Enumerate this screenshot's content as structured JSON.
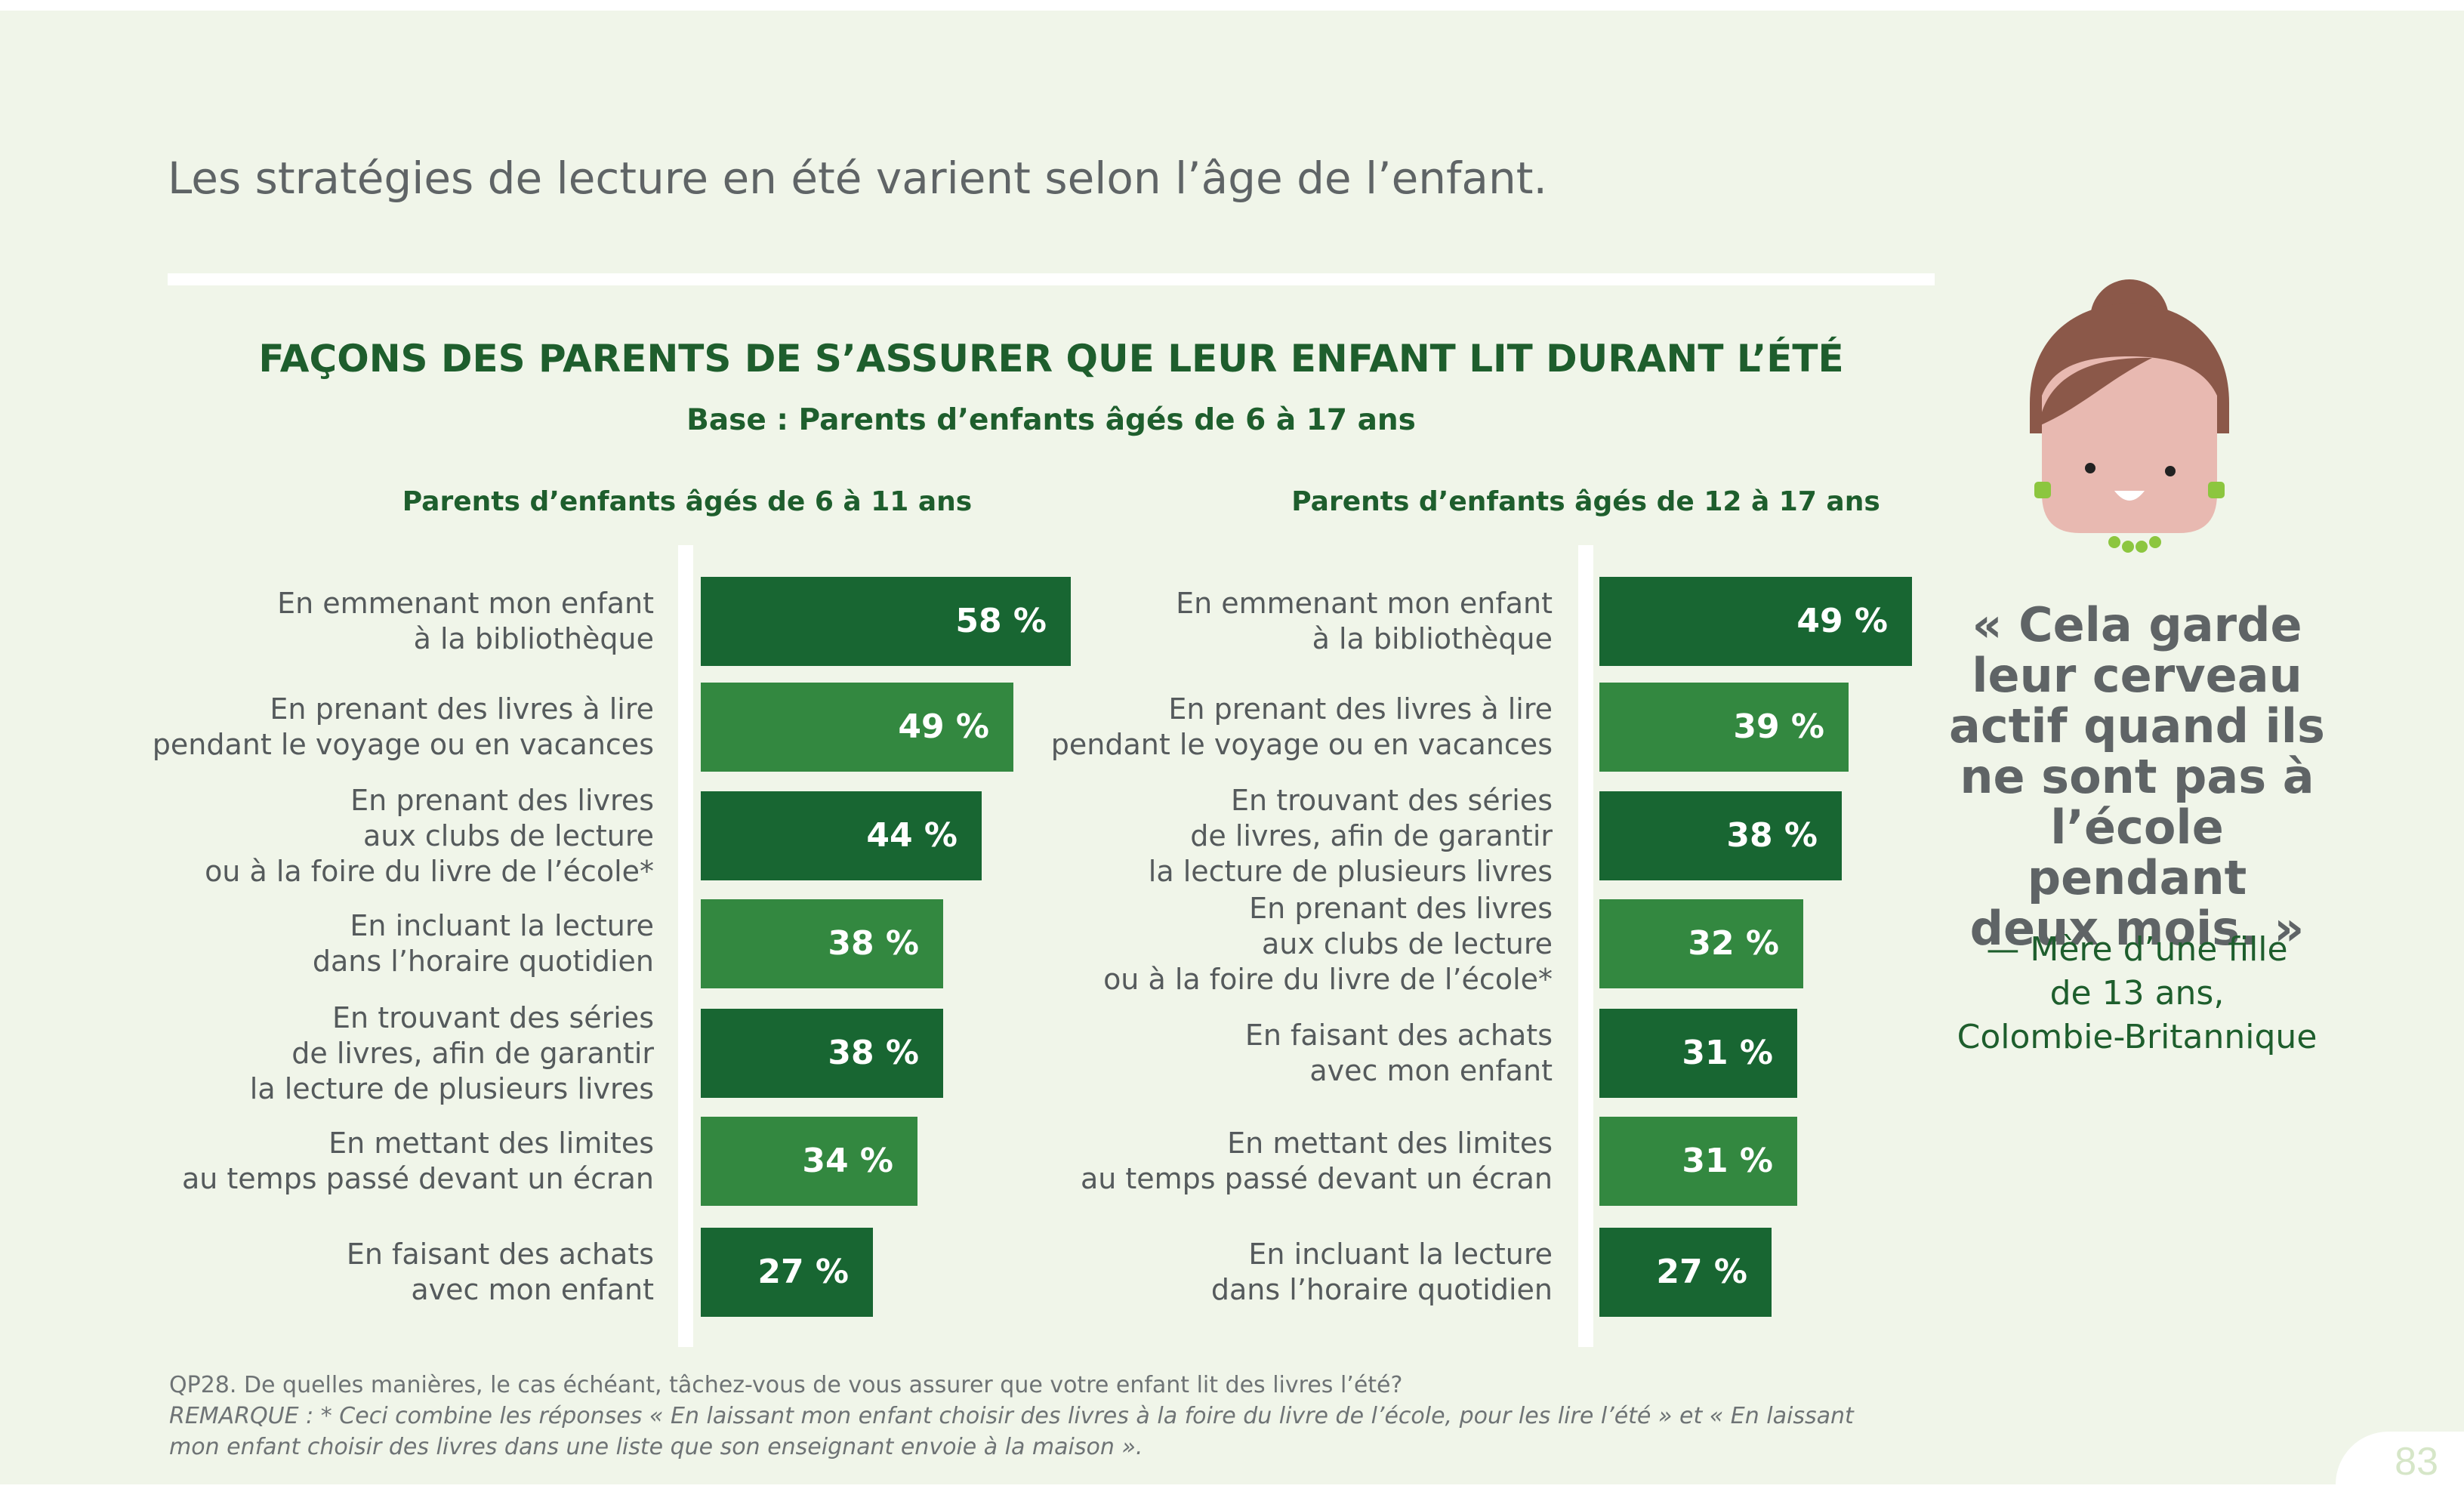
{
  "headline": "Les stratégies de lecture en été varient selon l’âge de l’enfant.",
  "chart_data": {
    "type": "bar",
    "orientation": "horizontal",
    "title": "FAÇONS DES PARENTS DE S’ASSURER QUE LEUR ENFANT LIT DURANT L’ÉTÉ",
    "subtitle": "Base : Parents d’enfants âgés de 6 à 17 ans",
    "value_suffix": " %",
    "xlim": [
      0,
      100
    ],
    "colors": {
      "dark": "#186632",
      "light": "#338840"
    },
    "panels": [
      {
        "title": "Parents d’enfants âgés de 6 à 11 ans",
        "categories": [
          "En emmenant mon enfant\nà la bibliothèque",
          "En prenant des livres à lire\npendant le voyage ou en vacances",
          "En prenant des livres\naux clubs de lecture\nou à la foire du livre de l’école*",
          "En incluant la lecture\ndans l’horaire quotidien",
          "En trouvant des séries\nde livres, afin de garantir\nla lecture de plusieurs livres",
          "En mettant des limites\nau temps passé devant un écran",
          "En faisant des achats\navec mon enfant"
        ],
        "values": [
          58,
          49,
          44,
          38,
          38,
          34,
          27
        ]
      },
      {
        "title": "Parents d’enfants âgés de 12 à 17 ans",
        "categories": [
          "En emmenant mon enfant\nà la bibliothèque",
          "En prenant des livres à lire\npendant le voyage ou en vacances",
          "En trouvant des séries\nde livres, afin de garantir\nla lecture de plusieurs livres",
          "En prenant des livres\naux clubs de lecture\nou à la foire du livre de l’école*",
          "En faisant des achats\navec mon enfant",
          "En mettant des limites\nau temps passé devant un écran",
          "En incluant la lecture\ndans l’horaire quotidien"
        ],
        "values": [
          49,
          39,
          38,
          32,
          31,
          31,
          27
        ]
      }
    ]
  },
  "quote": {
    "text": "« Cela garde\nleur cerveau\nactif quand ils\nne sont pas à\nl’école pendant\ndeux mois. »",
    "attribution": "— Mère d’une fille\nde 13 ans,\nColombie-Britannique"
  },
  "footnote": {
    "question": "QP28. De quelles manières, le cas échéant, tâchez-vous de vous assurer que votre enfant lit des livres l’été?",
    "remark": "REMARQUE : * Ceci combine les réponses « En laissant mon enfant choisir des livres à la foire du livre de l’école, pour les lire l’été » et  « En laissant\nmon enfant choisir des livres dans une liste que son enseignant envoie à la maison »."
  },
  "page_number": "83",
  "icons": {
    "avatar": "woman-avatar-icon"
  }
}
